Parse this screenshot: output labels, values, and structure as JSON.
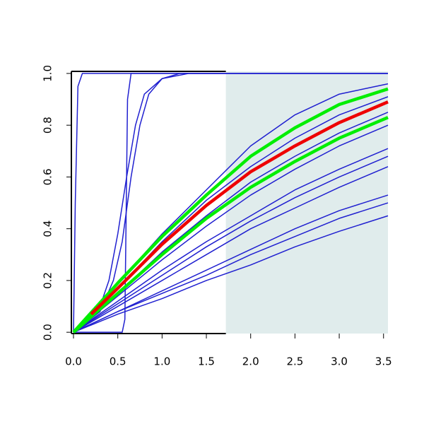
{
  "chart_data": {
    "type": "line",
    "xlim": [
      -0.024,
      3.55
    ],
    "ylim": [
      -0.005,
      1.008
    ],
    "xticks": [
      {
        "value": 0,
        "label": "0.0"
      },
      {
        "value": 0.5,
        "label": "0.5"
      },
      {
        "value": 1,
        "label": "1.0"
      },
      {
        "value": 1.5,
        "label": "1.5"
      },
      {
        "value": 2,
        "label": "2.0"
      },
      {
        "value": 2.5,
        "label": "2.5"
      },
      {
        "value": 3,
        "label": "3.0"
      },
      {
        "value": 3.5,
        "label": "3.5"
      }
    ],
    "yticks": [
      {
        "value": 0,
        "label": "0.0"
      },
      {
        "value": 0.2,
        "label": "0.2"
      },
      {
        "value": 0.4,
        "label": "0.4"
      },
      {
        "value": 0.6,
        "label": "0.6"
      },
      {
        "value": 0.8,
        "label": "0.8"
      },
      {
        "value": 1,
        "label": "1.0"
      }
    ],
    "shaded_region": {
      "xlim": [
        1.72,
        3.55
      ],
      "color": "#e0ecec"
    },
    "series": [
      {
        "color": "#2020d0",
        "line_width": 1.5,
        "x": [
          0,
          0.5,
          1,
          1.5,
          2,
          2.5,
          3,
          3.55
        ],
        "values": [
          0,
          0.19,
          0.38,
          0.55,
          0.72,
          0.84,
          0.92,
          0.96
        ]
      },
      {
        "color": "#2020d0",
        "line_width": 1.5,
        "x": [
          0,
          0.5,
          1,
          1.5,
          2,
          2.5,
          3,
          3.55
        ],
        "values": [
          0,
          0.17,
          0.35,
          0.51,
          0.64,
          0.75,
          0.84,
          0.91
        ]
      },
      {
        "color": "#2020d0",
        "line_width": 1.5,
        "x": [
          0,
          0.5,
          1,
          1.5,
          2,
          2.5,
          3,
          3.55
        ],
        "values": [
          0,
          0.15,
          0.31,
          0.45,
          0.58,
          0.68,
          0.77,
          0.85
        ]
      },
      {
        "color": "#2020d0",
        "line_width": 1.5,
        "x": [
          0,
          0.5,
          1,
          1.5,
          2,
          2.5,
          3,
          3.55
        ],
        "values": [
          0,
          0.14,
          0.28,
          0.41,
          0.53,
          0.63,
          0.72,
          0.8
        ]
      },
      {
        "color": "#2020d0",
        "line_width": 1.5,
        "x": [
          0,
          0.5,
          1,
          1.5,
          2,
          2.5,
          3,
          3.55
        ],
        "values": [
          0,
          0.12,
          0.24,
          0.35,
          0.45,
          0.55,
          0.63,
          0.71
        ]
      },
      {
        "color": "#2020d0",
        "line_width": 1.5,
        "x": [
          0,
          0.5,
          1,
          1.5,
          2,
          2.5,
          3,
          3.55
        ],
        "values": [
          0,
          0.11,
          0.22,
          0.33,
          0.43,
          0.52,
          0.6,
          0.68
        ]
      },
      {
        "color": "#2020d0",
        "line_width": 1.5,
        "x": [
          0,
          0.5,
          1,
          1.5,
          2,
          2.5,
          3,
          3.55
        ],
        "values": [
          0,
          0.1,
          0.2,
          0.3,
          0.4,
          0.48,
          0.56,
          0.64
        ]
      },
      {
        "color": "#2020d0",
        "line_width": 1.5,
        "x": [
          0,
          0.5,
          1,
          1.5,
          2,
          2.5,
          3,
          3.55
        ],
        "values": [
          0,
          0.08,
          0.16,
          0.24,
          0.32,
          0.4,
          0.47,
          0.53
        ]
      },
      {
        "color": "#2020d0",
        "line_width": 1.5,
        "x": [
          0,
          0.5,
          1,
          1.5,
          2,
          2.5,
          3,
          3.55
        ],
        "values": [
          0,
          0.08,
          0.15,
          0.22,
          0.3,
          0.37,
          0.44,
          0.5
        ]
      },
      {
        "color": "#2020d0",
        "line_width": 1.5,
        "x": [
          0,
          0.5,
          1,
          1.5,
          2,
          2.5,
          3,
          3.55
        ],
        "values": [
          0,
          0.07,
          0.13,
          0.2,
          0.26,
          0.33,
          0.39,
          0.45
        ]
      },
      {
        "color": "#2020d0",
        "line_width": 1.5,
        "x": [
          0,
          0.02,
          0.05,
          0.1,
          3.55
        ],
        "values": [
          0,
          0.5,
          0.95,
          1,
          1
        ]
      },
      {
        "color": "#2020d0",
        "line_width": 1.5,
        "x": [
          0,
          0.55,
          0.58,
          0.61,
          0.65,
          3.55
        ],
        "values": [
          0,
          0,
          0.05,
          0.9,
          1,
          1
        ]
      },
      {
        "color": "#2020d0",
        "line_width": 1.5,
        "x": [
          0,
          0.3,
          0.4,
          0.5,
          0.6,
          0.7,
          0.8,
          1,
          1.2,
          3.55
        ],
        "values": [
          0,
          0.1,
          0.2,
          0.38,
          0.6,
          0.8,
          0.92,
          0.98,
          1,
          1
        ]
      },
      {
        "color": "#2020d0",
        "line_width": 1.5,
        "x": [
          0,
          0.3,
          0.45,
          0.55,
          0.65,
          0.75,
          0.85,
          1,
          1.3,
          3.55
        ],
        "values": [
          0,
          0.08,
          0.2,
          0.35,
          0.6,
          0.8,
          0.92,
          0.98,
          1,
          1
        ]
      },
      {
        "color": "#00ee00",
        "line_width": 4.5,
        "x": [
          0,
          0.5,
          1,
          1.5,
          2,
          2.5,
          3,
          3.55
        ],
        "values": [
          0,
          0.19,
          0.37,
          0.53,
          0.68,
          0.79,
          0.88,
          0.94
        ]
      },
      {
        "color": "#00ee00",
        "line_width": 4.5,
        "x": [
          0,
          0.5,
          1,
          1.5,
          2,
          2.5,
          3,
          3.55
        ],
        "values": [
          0,
          0.15,
          0.3,
          0.44,
          0.56,
          0.66,
          0.75,
          0.83
        ]
      },
      {
        "color": "#ee0000",
        "line_width": 4.5,
        "x": [
          0.2,
          0.5,
          1,
          1.5,
          2,
          2.5,
          3,
          3.55
        ],
        "values": [
          0.07,
          0.17,
          0.34,
          0.49,
          0.62,
          0.72,
          0.81,
          0.89
        ]
      }
    ]
  }
}
